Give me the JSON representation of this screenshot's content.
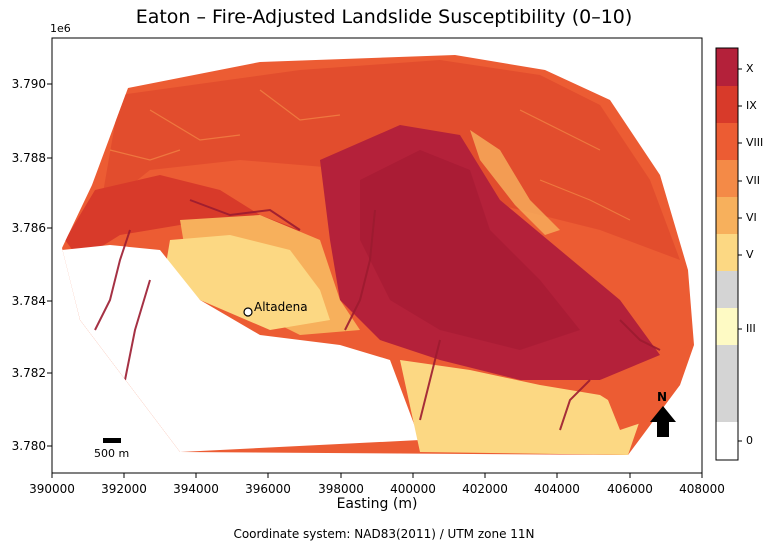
{
  "title": "Eaton – Fire-Adjusted Landslide Susceptibility (0–10)",
  "footer": "Coordinate system: NAD83(2011) / UTM zone 11N",
  "axes": {
    "xlabel": "Easting (m)",
    "y_offset_label": "1e6",
    "x_ticks": [
      "390000",
      "392000",
      "394000",
      "396000",
      "398000",
      "400000",
      "402000",
      "404000",
      "406000",
      "408000"
    ],
    "y_ticks": [
      "3.790",
      "3.788",
      "3.786",
      "3.784",
      "3.782",
      "3.780"
    ],
    "xlim": [
      390000,
      408000
    ],
    "ylim": [
      3.7793,
      3.7913
    ]
  },
  "colorbar": {
    "labels": [
      "X",
      "IX",
      "VIII",
      "VII",
      "VI",
      "V",
      "III",
      "0"
    ],
    "classes": [
      {
        "class": 10,
        "color": "#b4213a"
      },
      {
        "class": 9,
        "color": "#d83a2a"
      },
      {
        "class": 8,
        "color": "#ec5c33"
      },
      {
        "class": 7,
        "color": "#f48a47"
      },
      {
        "class": 6,
        "color": "#f7b05c"
      },
      {
        "class": 5,
        "color": "#fcd883"
      },
      {
        "class": 4,
        "color": "#d4d4d4"
      },
      {
        "class": 3,
        "color": "#fefac4"
      },
      {
        "class": 2,
        "color": "#d4d4d4"
      },
      {
        "class": 1,
        "color": "#ffffff"
      }
    ]
  },
  "annotations": {
    "place": "Altadena",
    "scalebar": "500 m",
    "north": "N"
  }
}
